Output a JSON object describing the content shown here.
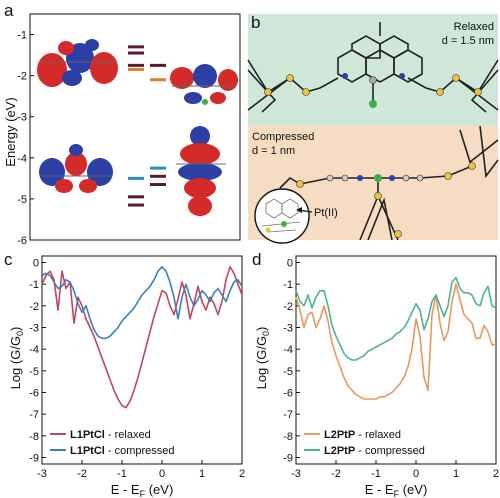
{
  "panels": {
    "a": {
      "label": "a",
      "ylabel": "Energy (eV)",
      "ytick_labels": [
        "-1",
        "-2",
        "-3",
        "-4",
        "-5",
        "-6"
      ],
      "yrange": [
        -6,
        -0.5
      ],
      "levels": [
        {
          "energy": -1.3,
          "color": "#5a1a2a",
          "column": "left"
        },
        {
          "energy": -1.45,
          "color": "#5a1a2a",
          "column": "left"
        },
        {
          "energy": -1.75,
          "color": "#5a1a2a",
          "column": "left"
        },
        {
          "energy": -1.85,
          "color": "#e07a2e",
          "column": "left"
        },
        {
          "energy": -1.75,
          "color": "#5a1a2a",
          "column": "right"
        },
        {
          "energy": -2.1,
          "color": "#e07a2e",
          "column": "right"
        },
        {
          "energy": -4.25,
          "color": "#2a8ad0",
          "column": "right"
        },
        {
          "energy": -4.45,
          "color": "#5a1a2a",
          "column": "right"
        },
        {
          "energy": -4.5,
          "color": "#2a8ad0",
          "column": "left"
        },
        {
          "energy": -4.65,
          "color": "#5a1a2a",
          "column": "right"
        },
        {
          "energy": -4.95,
          "color": "#5a1a2a",
          "column": "left"
        },
        {
          "energy": -5.15,
          "color": "#5a1a2a",
          "column": "left"
        }
      ]
    },
    "b": {
      "label": "b",
      "relaxed_title": "Relaxed",
      "relaxed_d": "d = 1.5 nm",
      "compressed_title": "Compressed",
      "compressed_d": "d = 1 nm",
      "metal_label": "Pt(II)",
      "colors": {
        "relaxed_bg": "#cfe7d8",
        "compressed_bg": "#f6dcc3"
      }
    },
    "c": {
      "label": "c"
    },
    "d": {
      "label": "d"
    }
  },
  "shared_axes": {
    "xlabel": "E - E",
    "xlabel_sub": "F",
    "xlabel_unit": " (eV)",
    "ylabel": "Log (G/G",
    "ylabel_sub": "0",
    "ylabel_end": ")",
    "xticks": [
      "-3",
      "-2",
      "-1",
      "0",
      "1",
      "2"
    ],
    "yticks": [
      "0",
      "-1",
      "-2",
      "-3",
      "-4",
      "-5",
      "-6",
      "-7",
      "-8",
      "-9"
    ]
  },
  "chart_data": [
    {
      "type": "line",
      "panel": "c",
      "xlim": [
        -3,
        2
      ],
      "ylim": [
        -9.3,
        0.3
      ],
      "series": [
        {
          "name": "L1PtCl",
          "name_suffix": " - relaxed",
          "color": "#c0455e",
          "x": [
            -3,
            -2.9,
            -2.8,
            -2.7,
            -2.6,
            -2.5,
            -2.4,
            -2.3,
            -2.2,
            -2.1,
            -2.0,
            -1.9,
            -1.8,
            -1.7,
            -1.6,
            -1.5,
            -1.4,
            -1.3,
            -1.2,
            -1.1,
            -1.0,
            -0.9,
            -0.8,
            -0.7,
            -0.6,
            -0.5,
            -0.4,
            -0.3,
            -0.2,
            -0.1,
            0.0,
            0.1,
            0.2,
            0.3,
            0.4,
            0.5,
            0.6,
            0.7,
            0.8,
            0.9,
            1.0,
            1.1,
            1.2,
            1.3,
            1.4,
            1.5,
            1.6,
            1.7,
            1.8,
            1.9,
            2.0
          ],
          "y": [
            -1.0,
            -0.6,
            -0.4,
            -0.8,
            -2.2,
            -0.4,
            -1.2,
            -0.9,
            -2.8,
            -1.6,
            -2.0,
            -2.6,
            -3.0,
            -3.4,
            -3.9,
            -4.4,
            -4.9,
            -5.4,
            -5.9,
            -6.3,
            -6.6,
            -6.7,
            -6.4,
            -5.9,
            -5.3,
            -4.6,
            -3.9,
            -3.2,
            -2.5,
            -1.9,
            -1.3,
            -1.4,
            -2.0,
            -2.4,
            -1.7,
            -0.9,
            -1.5,
            -2.6,
            -1.9,
            -1.1,
            -1.8,
            -2.2,
            -1.6,
            -1.9,
            -2.4,
            -1.8,
            -0.8,
            -0.2,
            -0.5,
            -1.0,
            -1.5
          ]
        },
        {
          "name": "L1PtCl",
          "name_suffix": " - compressed",
          "color": "#3d7fb5",
          "x": [
            -3,
            -2.9,
            -2.8,
            -2.7,
            -2.6,
            -2.5,
            -2.4,
            -2.3,
            -2.2,
            -2.1,
            -2.0,
            -1.9,
            -1.8,
            -1.7,
            -1.6,
            -1.5,
            -1.4,
            -1.3,
            -1.2,
            -1.1,
            -1.0,
            -0.9,
            -0.8,
            -0.7,
            -0.6,
            -0.5,
            -0.4,
            -0.3,
            -0.2,
            -0.1,
            0.0,
            0.1,
            0.2,
            0.3,
            0.4,
            0.5,
            0.6,
            0.7,
            0.8,
            0.9,
            1.0,
            1.1,
            1.2,
            1.3,
            1.4,
            1.5,
            1.6,
            1.7,
            1.8,
            1.9,
            2.0
          ],
          "y": [
            -0.6,
            -0.5,
            -0.6,
            -0.9,
            -1.2,
            -1.1,
            -0.8,
            -0.9,
            -1.3,
            -1.9,
            -2.3,
            -2.0,
            -2.6,
            -3.1,
            -3.4,
            -3.5,
            -3.5,
            -3.4,
            -3.2,
            -3.0,
            -2.7,
            -2.5,
            -2.3,
            -2.1,
            -1.8,
            -1.5,
            -1.3,
            -1.1,
            -0.8,
            -0.4,
            -0.2,
            -0.4,
            -0.9,
            -1.6,
            -2.6,
            -1.6,
            -1.0,
            -1.6,
            -2.0,
            -1.7,
            -1.3,
            -1.5,
            -1.8,
            -1.4,
            -1.2,
            -1.5,
            -1.8,
            -1.3,
            -0.9,
            -0.8,
            -1.1
          ]
        }
      ]
    },
    {
      "type": "line",
      "panel": "d",
      "xlim": [
        -3,
        2
      ],
      "ylim": [
        -9.3,
        0.3
      ],
      "series": [
        {
          "name": "L2PtP",
          "name_suffix": " - relaxed",
          "color": "#e6995c",
          "x": [
            -3,
            -2.9,
            -2.8,
            -2.7,
            -2.6,
            -2.5,
            -2.4,
            -2.3,
            -2.2,
            -2.1,
            -2.0,
            -1.9,
            -1.8,
            -1.7,
            -1.6,
            -1.5,
            -1.4,
            -1.3,
            -1.2,
            -1.1,
            -1.0,
            -0.9,
            -0.8,
            -0.7,
            -0.6,
            -0.5,
            -0.4,
            -0.3,
            -0.2,
            -0.1,
            0.0,
            0.1,
            0.2,
            0.3,
            0.4,
            0.5,
            0.6,
            0.7,
            0.8,
            0.9,
            1.0,
            1.1,
            1.2,
            1.3,
            1.4,
            1.5,
            1.6,
            1.7,
            1.8,
            1.9,
            2.0
          ],
          "y": [
            -1.6,
            -2.2,
            -3.0,
            -2.4,
            -2.3,
            -3.0,
            -2.6,
            -2.0,
            -2.7,
            -3.7,
            -4.3,
            -4.8,
            -5.3,
            -5.7,
            -5.9,
            -6.1,
            -6.2,
            -6.3,
            -6.3,
            -6.3,
            -6.3,
            -6.2,
            -6.2,
            -6.1,
            -6.0,
            -5.8,
            -5.6,
            -5.3,
            -4.8,
            -4.0,
            -2.6,
            -3.4,
            -5.3,
            -5.9,
            -2.4,
            -1.5,
            -2.8,
            -3.6,
            -3.2,
            -1.8,
            -1.0,
            -1.7,
            -2.4,
            -2.6,
            -2.8,
            -3.5,
            -3.5,
            -2.9,
            -3.2,
            -3.8,
            -3.8
          ]
        },
        {
          "name": "L2PtP",
          "name_suffix": " - compressed",
          "color": "#4ab39a",
          "x": [
            -3,
            -2.9,
            -2.8,
            -2.7,
            -2.6,
            -2.5,
            -2.4,
            -2.3,
            -2.2,
            -2.1,
            -2.0,
            -1.9,
            -1.8,
            -1.7,
            -1.6,
            -1.5,
            -1.4,
            -1.3,
            -1.2,
            -1.1,
            -1.0,
            -0.9,
            -0.8,
            -0.7,
            -0.6,
            -0.5,
            -0.4,
            -0.3,
            -0.2,
            -0.1,
            0.0,
            0.1,
            0.2,
            0.3,
            0.4,
            0.5,
            0.6,
            0.7,
            0.8,
            0.9,
            1.0,
            1.1,
            1.2,
            1.3,
            1.4,
            1.5,
            1.6,
            1.7,
            1.8,
            1.9,
            2.0
          ],
          "y": [
            -1.3,
            -1.8,
            -2.0,
            -1.5,
            -2.1,
            -1.6,
            -1.3,
            -1.3,
            -2.0,
            -2.9,
            -3.4,
            -3.8,
            -4.2,
            -4.4,
            -4.5,
            -4.5,
            -4.4,
            -4.3,
            -4.1,
            -4.0,
            -3.9,
            -3.8,
            -3.7,
            -3.6,
            -3.5,
            -3.3,
            -3.2,
            -3.0,
            -2.7,
            -2.3,
            -1.9,
            -2.2,
            -3.1,
            -2.6,
            -1.8,
            -1.5,
            -2.0,
            -2.5,
            -2.0,
            -0.9,
            -0.7,
            -1.2,
            -1.4,
            -1.4,
            -1.5,
            -1.9,
            -2.0,
            -1.4,
            -1.1,
            -2.0,
            -2.1
          ]
        }
      ]
    }
  ]
}
